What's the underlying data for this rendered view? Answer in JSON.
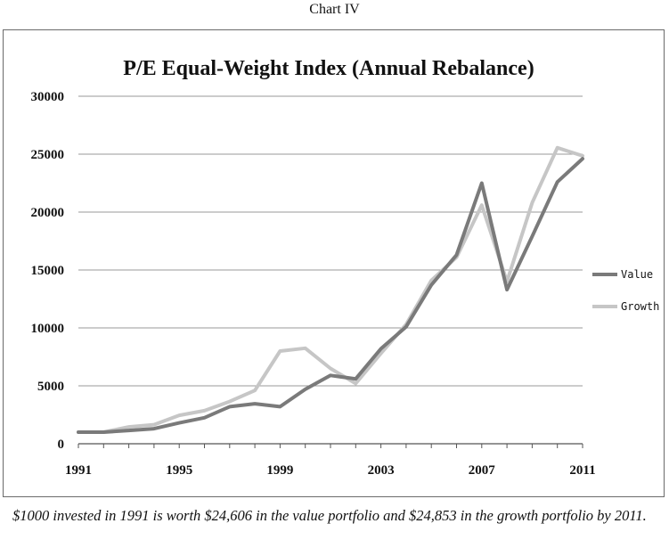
{
  "header": {
    "chart_label": "Chart IV"
  },
  "footnote": "$1000 invested in 1991 is worth $24,606 in the value portfolio and $24,853 in the growth portfolio by 2011.",
  "chart_data": {
    "type": "line",
    "title": "P/E Equal-Weight Index (Annual Rebalance)",
    "xlabel": "",
    "ylabel": "",
    "x": [
      1991,
      1992,
      1993,
      1994,
      1995,
      1996,
      1997,
      1998,
      1999,
      2000,
      2001,
      2002,
      2003,
      2004,
      2005,
      2006,
      2007,
      2008,
      2009,
      2010,
      2011
    ],
    "xticks": [
      "1991",
      "1995",
      "1999",
      "2003",
      "2007",
      "2011"
    ],
    "yticks": [
      "0",
      "5000",
      "10000",
      "15000",
      "20000",
      "25000",
      "30000"
    ],
    "ylim": [
      0,
      30000
    ],
    "grid": "horizontal",
    "legend": "right",
    "series": [
      {
        "name": "Value",
        "color": "#7a7a7a",
        "values": [
          1000,
          1000,
          1150,
          1300,
          1800,
          2250,
          3200,
          3450,
          3200,
          4700,
          5900,
          5600,
          8200,
          10100,
          13700,
          16300,
          22500,
          13300,
          17900,
          22600,
          24606
        ]
      },
      {
        "name": "Growth",
        "color": "#c6c6c6",
        "values": [
          1000,
          1000,
          1450,
          1650,
          2450,
          2850,
          3650,
          4600,
          8000,
          8250,
          6500,
          5200,
          7800,
          10300,
          14100,
          16100,
          20600,
          14000,
          20800,
          25550,
          24853
        ]
      }
    ]
  }
}
